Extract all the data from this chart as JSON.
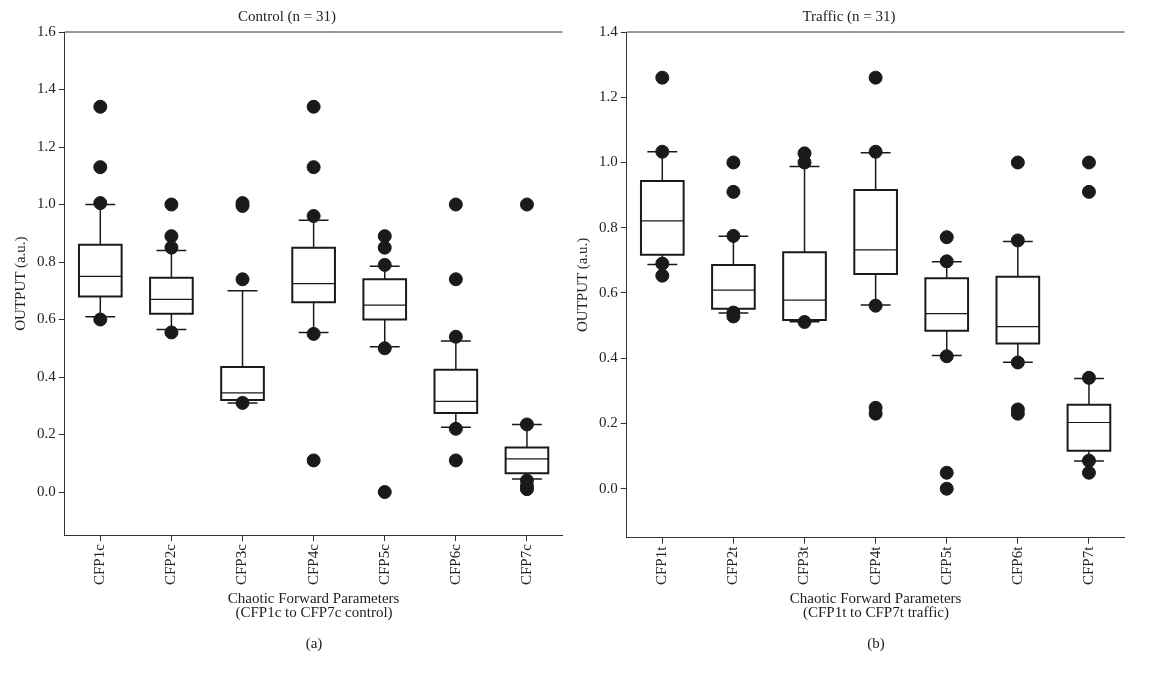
{
  "chart_data": [
    {
      "type": "box",
      "title": "Control (n = 31)",
      "xlabel": "Chaotic Forward Parameters",
      "ylabel": "OUTPUT (a.u.)",
      "annotations": [
        "(CFP1c to CFP7c control)",
        "(a)"
      ],
      "grid": false,
      "color": "#1a1a1a",
      "categories": [
        "CFP1c",
        "CFP2c",
        "CFP3c",
        "CFP4c",
        "CFP5c",
        "CFP6c",
        "CFP7c"
      ],
      "ylim": [
        -0.15,
        1.6
      ],
      "yticks": [
        {
          "value": 0,
          "label": "0.0"
        },
        {
          "value": 0.2,
          "label": "0.2"
        },
        {
          "value": 0.4,
          "label": "0.4"
        },
        {
          "value": 0.6,
          "label": "0.6"
        },
        {
          "value": 0.8,
          "label": "0.8"
        },
        {
          "value": 1,
          "label": "1.0"
        },
        {
          "value": 1.2,
          "label": "1.2"
        },
        {
          "value": 1.4,
          "label": "1.4"
        },
        {
          "value": 1.6,
          "label": "1.6"
        }
      ],
      "boxes": [
        {
          "low": 0.61,
          "q1": 0.68,
          "median": 0.75,
          "q3": 0.86,
          "high": 1.0,
          "outliers": [
            1.34,
            1.13,
            1.005,
            0.6
          ]
        },
        {
          "low": 0.565,
          "q1": 0.62,
          "median": 0.67,
          "q3": 0.745,
          "high": 0.84,
          "outliers": [
            1.0,
            0.89,
            0.85,
            0.555
          ]
        },
        {
          "low": 0.31,
          "q1": 0.32,
          "median": 0.345,
          "q3": 0.435,
          "high": 0.7,
          "outliers": [
            1.005,
            0.995,
            0.74,
            0.31
          ]
        },
        {
          "low": 0.555,
          "q1": 0.66,
          "median": 0.725,
          "q3": 0.85,
          "high": 0.945,
          "outliers": [
            1.34,
            1.13,
            0.96,
            0.55,
            0.11
          ]
        },
        {
          "low": 0.505,
          "q1": 0.6,
          "median": 0.65,
          "q3": 0.74,
          "high": 0.785,
          "outliers": [
            0.89,
            0.85,
            0.79,
            0.5,
            0.0
          ]
        },
        {
          "low": 0.225,
          "q1": 0.275,
          "median": 0.315,
          "q3": 0.425,
          "high": 0.525,
          "outliers": [
            1.0,
            0.74,
            0.54,
            0.22,
            0.11
          ]
        },
        {
          "low": 0.045,
          "q1": 0.065,
          "median": 0.115,
          "q3": 0.155,
          "high": 0.235,
          "outliers": [
            1.0,
            0.235,
            0.04,
            0.02,
            0.01
          ]
        }
      ]
    },
    {
      "type": "box",
      "title": "Traffic (n = 31)",
      "xlabel": "Chaotic Forward Parameters",
      "ylabel": "OUTPUT (a.u.)",
      "annotations": [
        "(CFP1t to CFP7t traffic)",
        "(b)"
      ],
      "grid": false,
      "color": "#1a1a1a",
      "categories": [
        "CFP1t",
        "CFP2t",
        "CFP3t",
        "CFP4t",
        "CFP5t",
        "CFP6t",
        "CFP7t"
      ],
      "ylim": [
        -0.15,
        1.4
      ],
      "yticks": [
        {
          "value": 0,
          "label": "0.0"
        },
        {
          "value": 0.2,
          "label": "0.2"
        },
        {
          "value": 0.4,
          "label": "0.4"
        },
        {
          "value": 0.6,
          "label": "0.6"
        },
        {
          "value": 0.8,
          "label": "0.8"
        },
        {
          "value": 1,
          "label": "1.0"
        },
        {
          "value": 1.2,
          "label": "1.2"
        },
        {
          "value": 1.4,
          "label": "1.4"
        }
      ],
      "boxes": [
        {
          "low": 0.687,
          "q1": 0.717,
          "median": 0.821,
          "q3": 0.943,
          "high": 1.033,
          "outliers": [
            1.26,
            1.033,
            0.69,
            0.653
          ]
        },
        {
          "low": 0.539,
          "q1": 0.552,
          "median": 0.609,
          "q3": 0.686,
          "high": 0.774,
          "outliers": [
            1.0,
            0.91,
            0.775,
            0.54,
            0.528
          ]
        },
        {
          "low": 0.512,
          "q1": 0.517,
          "median": 0.578,
          "q3": 0.725,
          "high": 0.988,
          "outliers": [
            1.028,
            1.0,
            0.511
          ]
        },
        {
          "low": 0.563,
          "q1": 0.658,
          "median": 0.732,
          "q3": 0.916,
          "high": 1.03,
          "outliers": [
            1.26,
            1.033,
            0.561,
            0.248,
            0.23
          ]
        },
        {
          "low": 0.408,
          "q1": 0.484,
          "median": 0.537,
          "q3": 0.645,
          "high": 0.696,
          "outliers": [
            0.771,
            0.697,
            0.406,
            0.049,
            0.0
          ]
        },
        {
          "low": 0.388,
          "q1": 0.445,
          "median": 0.497,
          "q3": 0.65,
          "high": 0.758,
          "outliers": [
            1.0,
            0.761,
            0.387,
            0.243,
            0.23
          ]
        },
        {
          "low": 0.085,
          "q1": 0.116,
          "median": 0.203,
          "q3": 0.257,
          "high": 0.338,
          "outliers": [
            1.0,
            0.91,
            0.34,
            0.086,
            0.049
          ]
        }
      ]
    }
  ]
}
